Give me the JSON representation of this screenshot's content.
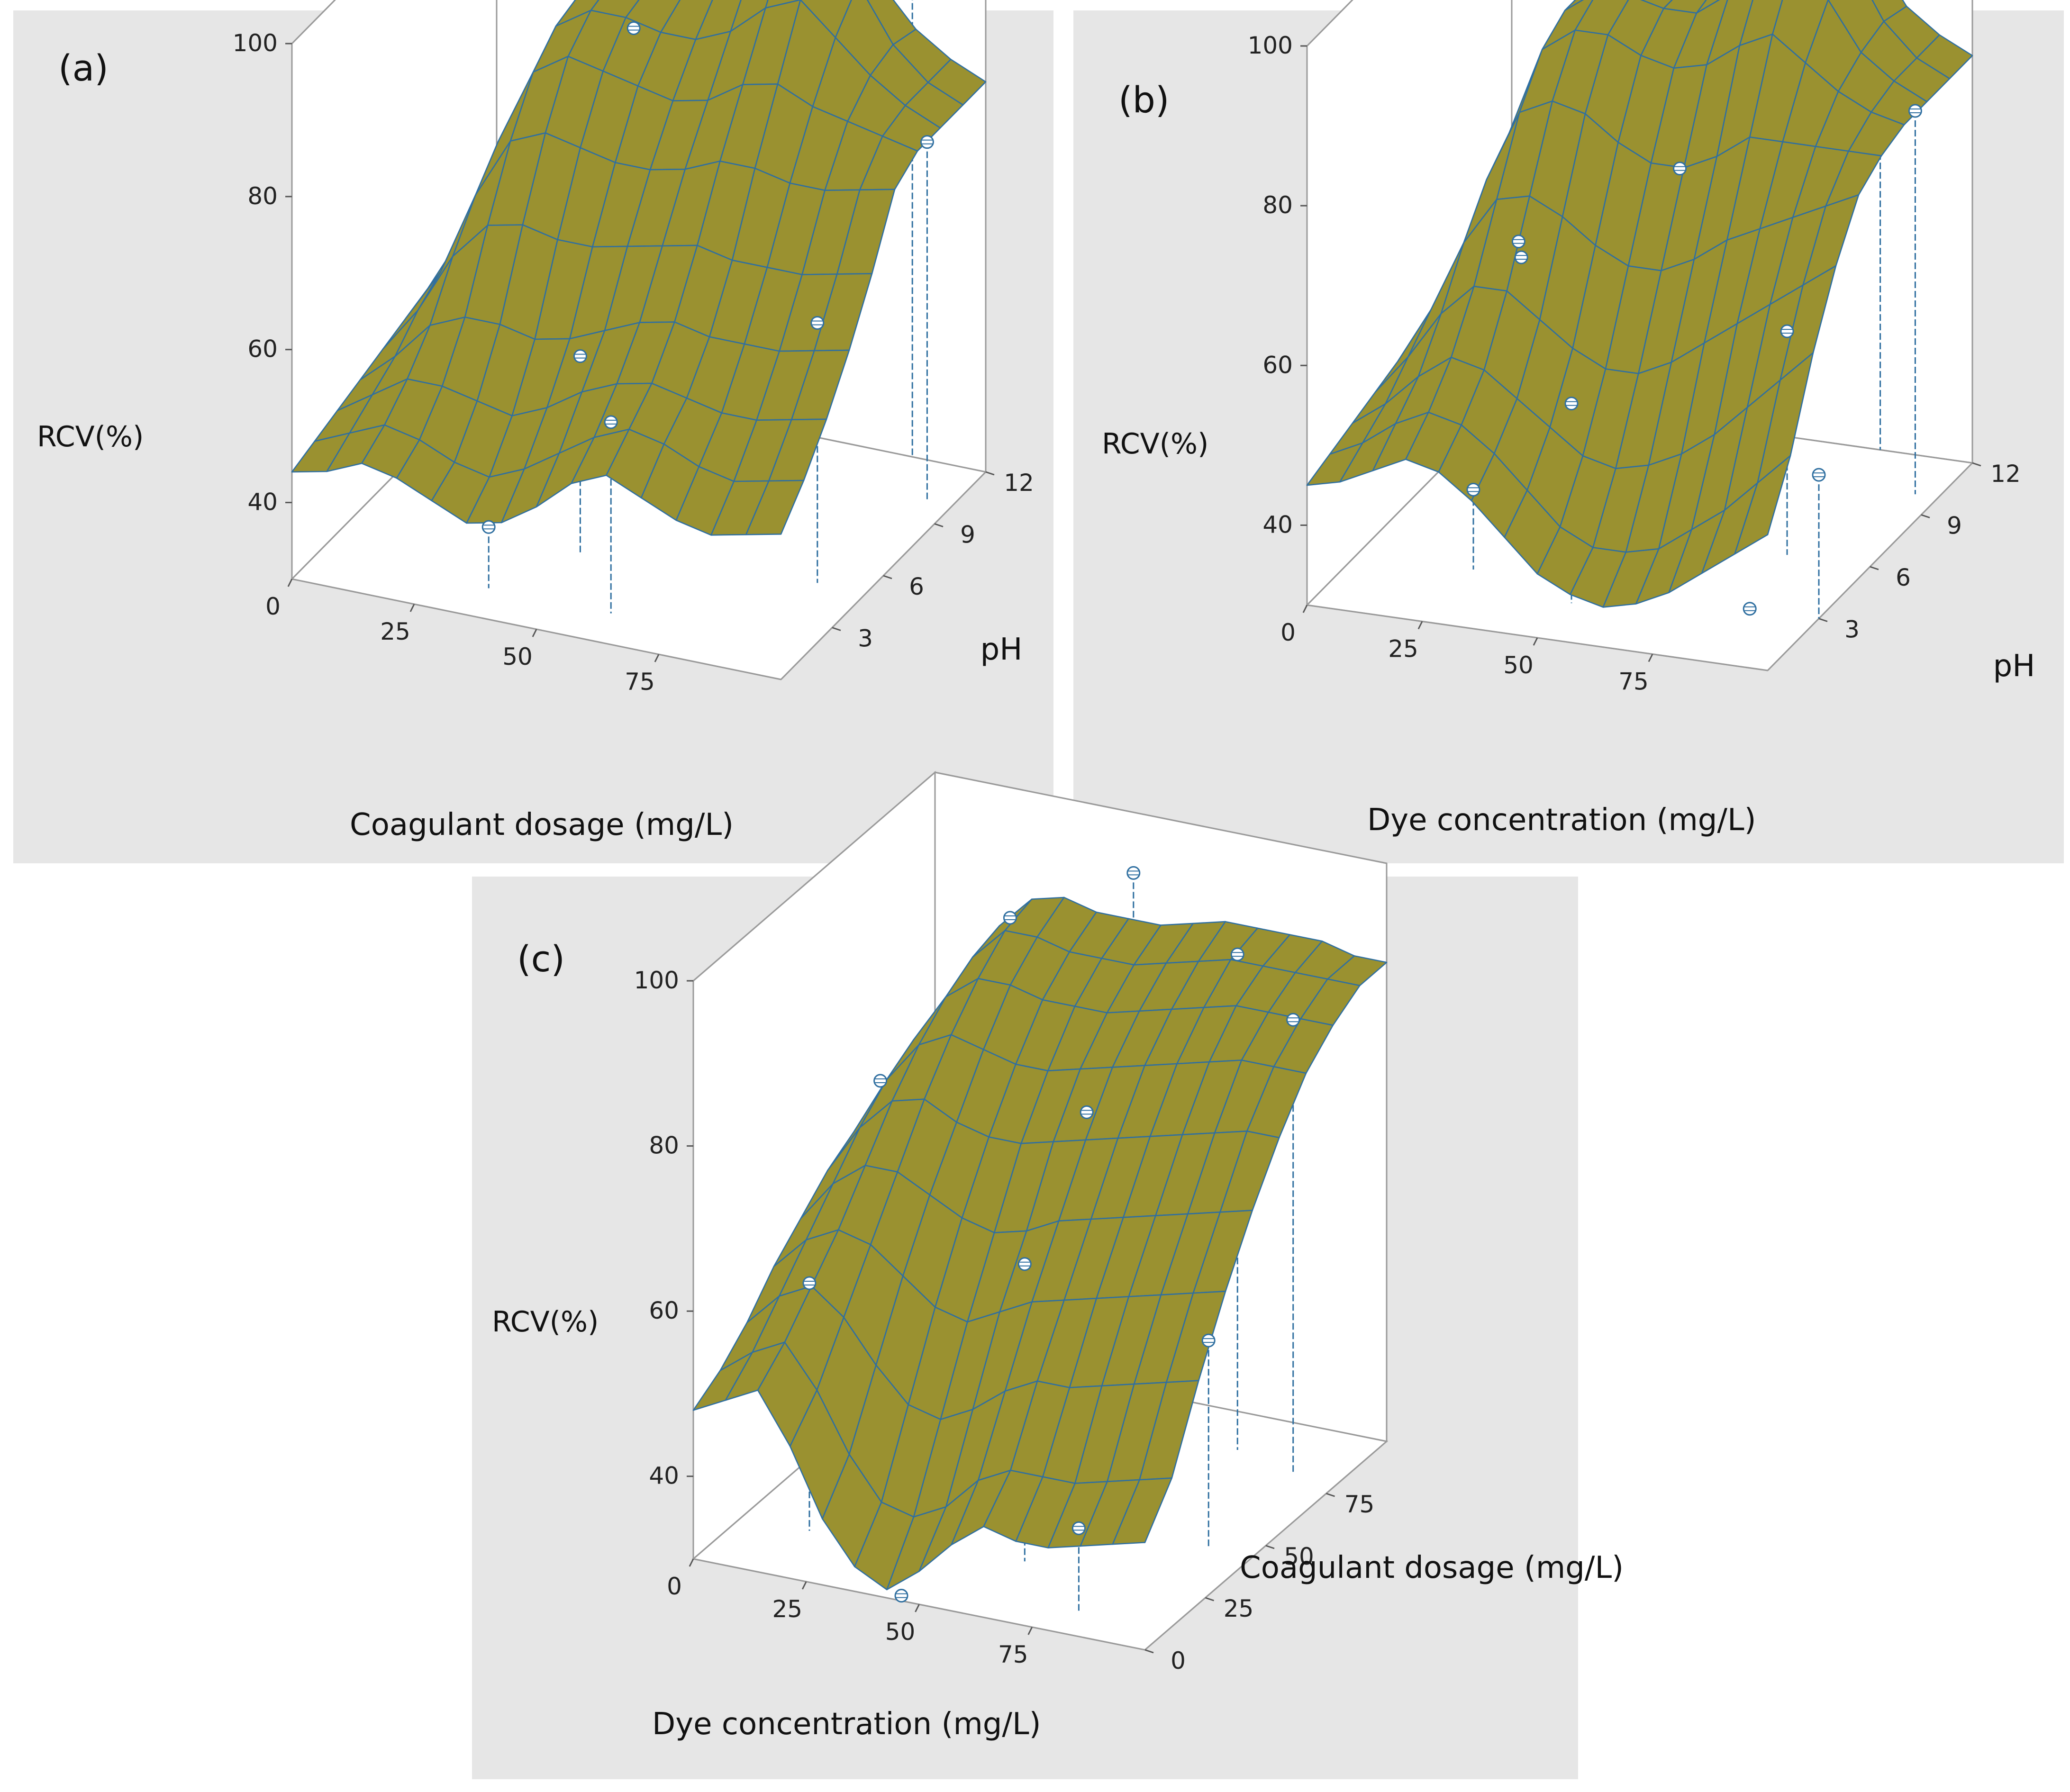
{
  "chart_data": [
    {
      "type": "surface",
      "panel_label": "(a)",
      "xlabel": "Coagulant dosage (mg/L)",
      "ylabel": "pH",
      "zlabel": "RCV(%)",
      "x_ticks": [
        "0",
        "25",
        "50",
        "75"
      ],
      "y_ticks": [
        "3",
        "6",
        "9",
        "12"
      ],
      "z_ticks": [
        "40",
        "60",
        "80",
        "100"
      ],
      "xlim": [
        0,
        100
      ],
      "ylim": [
        0,
        12
      ],
      "zlim": [
        30,
        100
      ],
      "surface_color": "#9a9130",
      "mesh_color": "#2f6fa0",
      "points": [
        {
          "x": 35,
          "y": 1.5,
          "z": 38
        },
        {
          "x": 60,
          "y": 1.5,
          "z": 55
        },
        {
          "x": 90,
          "y": 5,
          "z": 64
        },
        {
          "x": 35,
          "y": 10,
          "z": 84
        },
        {
          "x": 45,
          "y": 4,
          "z": 56
        },
        {
          "x": 85,
          "y": 12,
          "z": 98
        },
        {
          "x": 95,
          "y": 10,
          "z": 77
        }
      ],
      "grid": [
        [
          44,
          45,
          47,
          46,
          44,
          42,
          43,
          46,
          50,
          52,
          50,
          48,
          47,
          48,
          49
        ],
        [
          45,
          47,
          49,
          48,
          46,
          45,
          47,
          50,
          53,
          55,
          54,
          52,
          51,
          52,
          53
        ],
        [
          46,
          49,
          52,
          52,
          51,
          50,
          52,
          55,
          57,
          58,
          57,
          56,
          56,
          57,
          58
        ],
        [
          47,
          51,
          56,
          58,
          58,
          57,
          58,
          60,
          62,
          63,
          62,
          62,
          62,
          63,
          64
        ],
        [
          48,
          54,
          62,
          67,
          68,
          67,
          67,
          68,
          69,
          70,
          69,
          69,
          69,
          70,
          71
        ],
        [
          49,
          56,
          67,
          75,
          77,
          76,
          75,
          75,
          76,
          78,
          78,
          77,
          77,
          78,
          79
        ],
        [
          50,
          58,
          71,
          81,
          84,
          83,
          82,
          81,
          82,
          85,
          86,
          84,
          83,
          82,
          81
        ],
        [
          50,
          59,
          73,
          84,
          87,
          87,
          86,
          86,
          88,
          92,
          94,
          90,
          86,
          83,
          81
        ],
        [
          50,
          59,
          74,
          85,
          88,
          88,
          88,
          90,
          94,
          99,
          100,
          94,
          87,
          83,
          81
        ],
        [
          50,
          59,
          74,
          85,
          88,
          88,
          87,
          89,
          92,
          96,
          96,
          91,
          86,
          83,
          81
        ]
      ]
    },
    {
      "type": "surface",
      "panel_label": "(b)",
      "xlabel": "Dye concentration (mg/L)",
      "ylabel": "pH",
      "zlabel": "RCV(%)",
      "x_ticks": [
        "0",
        "25",
        "50",
        "75"
      ],
      "y_ticks": [
        "3",
        "6",
        "9",
        "12"
      ],
      "z_ticks": [
        "40",
        "60",
        "80",
        "100"
      ],
      "xlim": [
        0,
        100
      ],
      "ylim": [
        0,
        12
      ],
      "zlim": [
        30,
        100
      ],
      "surface_color": "#9a9130",
      "mesh_color": "#2f6fa0",
      "points": [
        {
          "x": 25,
          "y": 3,
          "z": 40
        },
        {
          "x": 20,
          "y": 7,
          "z": 62
        },
        {
          "x": 28,
          "y": 5,
          "z": 65
        },
        {
          "x": 50,
          "y": 2,
          "z": 55
        },
        {
          "x": 55,
          "y": 7,
          "z": 74
        },
        {
          "x": 85,
          "y": 3,
          "z": 30
        },
        {
          "x": 82,
          "y": 6,
          "z": 58
        },
        {
          "x": 100,
          "y": 3,
          "z": 48
        },
        {
          "x": 30,
          "y": 11,
          "z": 89
        },
        {
          "x": 80,
          "y": 12,
          "z": 98
        },
        {
          "x": 95,
          "y": 10,
          "z": 78
        }
      ],
      "grid": [
        [
          45,
          46,
          48,
          50,
          49,
          46,
          42,
          38,
          36,
          35,
          36,
          38,
          41,
          44,
          47
        ],
        [
          46,
          48,
          51,
          53,
          52,
          49,
          45,
          41,
          39,
          39,
          40,
          43,
          46,
          50,
          54
        ],
        [
          47,
          50,
          54,
          57,
          56,
          53,
          50,
          47,
          46,
          47,
          49,
          52,
          56,
          60,
          64
        ],
        [
          48,
          53,
          59,
          63,
          63,
          60,
          57,
          55,
          55,
          57,
          60,
          63,
          66,
          69,
          72
        ],
        [
          49,
          56,
          65,
          71,
          72,
          70,
          67,
          65,
          65,
          67,
          70,
          72,
          74,
          76,
          78
        ],
        [
          50,
          58,
          70,
          79,
          81,
          80,
          77,
          75,
          75,
          77,
          80,
          80,
          80,
          80,
          80
        ],
        [
          50,
          59,
          73,
          84,
          87,
          87,
          85,
          84,
          85,
          88,
          90,
          87,
          84,
          82,
          81
        ],
        [
          50,
          59,
          74,
          86,
          89,
          89,
          88,
          88,
          91,
          95,
          97,
          92,
          86,
          83,
          81
        ],
        [
          50,
          59,
          74,
          86,
          89,
          89,
          88,
          89,
          93,
          99,
          100,
          94,
          87,
          83,
          81
        ],
        [
          50,
          59,
          74,
          86,
          89,
          89,
          88,
          89,
          92,
          97,
          97,
          92,
          86,
          83,
          81
        ]
      ]
    },
    {
      "type": "surface",
      "panel_label": "(c)",
      "xlabel": "Dye concentration (mg/L)",
      "ylabel": "Coagulant dosage (mg/L)",
      "zlabel": "RCV(%)",
      "x_ticks": [
        "0",
        "25",
        "50",
        "75"
      ],
      "y_ticks": [
        "0",
        "25",
        "50",
        "75"
      ],
      "z_ticks": [
        "40",
        "60",
        "80",
        "100"
      ],
      "xlim": [
        0,
        100
      ],
      "ylim": [
        0,
        100
      ],
      "zlim": [
        30,
        100
      ],
      "surface_color": "#9a9130",
      "mesh_color": "#2f6fa0",
      "points": [
        {
          "x": 45,
          "y": 2,
          "z": 30
        },
        {
          "x": 80,
          "y": 10,
          "z": 40
        },
        {
          "x": 90,
          "y": 45,
          "z": 55
        },
        {
          "x": 15,
          "y": 20,
          "z": 60
        },
        {
          "x": 20,
          "y": 40,
          "z": 80
        },
        {
          "x": 30,
          "y": 75,
          "z": 92
        },
        {
          "x": 55,
          "y": 60,
          "z": 75
        },
        {
          "x": 60,
          "y": 70,
          "z": 102
        },
        {
          "x": 60,
          "y": 25,
          "z": 66
        },
        {
          "x": 75,
          "y": 85,
          "z": 90
        },
        {
          "x": 90,
          "y": 80,
          "z": 85
        }
      ],
      "grid": [
        [
          48,
          50,
          52,
          46,
          38,
          33,
          31,
          34,
          38,
          41,
          40,
          40,
          41,
          42,
          43
        ],
        [
          50,
          53,
          55,
          50,
          43,
          38,
          37,
          39,
          43,
          45,
          45,
          45,
          46,
          47,
          48
        ],
        [
          53,
          57,
          59,
          56,
          51,
          47,
          46,
          48,
          51,
          53,
          53,
          54,
          55,
          56,
          57
        ],
        [
          57,
          61,
          63,
          62,
          59,
          56,
          55,
          57,
          59,
          60,
          61,
          62,
          63,
          64,
          65
        ],
        [
          60,
          65,
          68,
          68,
          66,
          64,
          63,
          64,
          66,
          67,
          68,
          69,
          70,
          71,
          72
        ],
        [
          63,
          69,
          73,
          74,
          72,
          71,
          71,
          72,
          73,
          74,
          75,
          76,
          77,
          78,
          78
        ],
        [
          65,
          72,
          77,
          79,
          78,
          77,
          77,
          78,
          79,
          80,
          81,
          82,
          83,
          83,
          83
        ],
        [
          66,
          74,
          80,
          83,
          83,
          82,
          82,
          82,
          83,
          84,
          85,
          86,
          86,
          86,
          86
        ],
        [
          67,
          75,
          82,
          86,
          86,
          85,
          85,
          85,
          86,
          87,
          88,
          88,
          88,
          88,
          88
        ],
        [
          67,
          76,
          83,
          87,
          88,
          87,
          87,
          87,
          88,
          89,
          89,
          89,
          89,
          88,
          88
        ]
      ]
    }
  ]
}
